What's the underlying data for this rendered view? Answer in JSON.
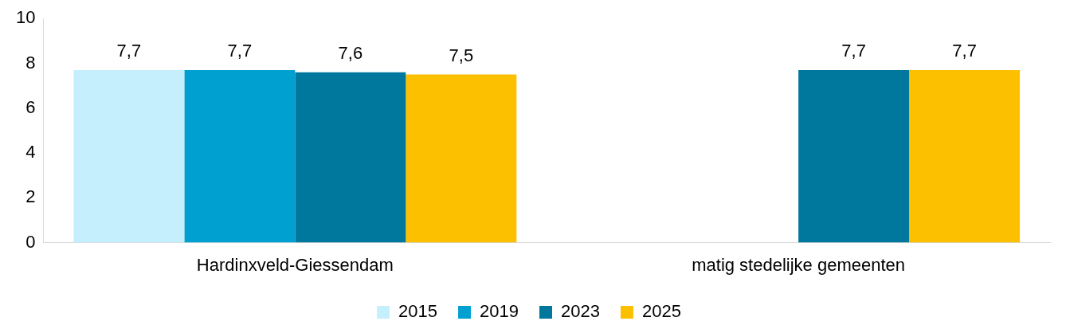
{
  "chart_data": {
    "type": "bar",
    "categories": [
      "Hardinxveld-Giessendam",
      "matig stedelijke gemeenten"
    ],
    "series": [
      {
        "name": "2015",
        "color": "#c5effc",
        "values": [
          7.7,
          null
        ],
        "value_labels": [
          "7,7",
          null
        ]
      },
      {
        "name": "2019",
        "color": "#00a0d1",
        "values": [
          7.7,
          null
        ],
        "value_labels": [
          "7,7",
          null
        ]
      },
      {
        "name": "2023",
        "color": "#00789e",
        "values": [
          7.6,
          7.7
        ],
        "value_labels": [
          "7,6",
          "7,7"
        ]
      },
      {
        "name": "2025",
        "color": "#fdc000",
        "values": [
          7.5,
          7.7
        ],
        "value_labels": [
          "7,5",
          "7,7"
        ]
      }
    ],
    "ylim": [
      0,
      10
    ],
    "yticks": [
      0,
      2,
      4,
      6,
      8,
      10
    ],
    "grid": false,
    "legend": "bottom"
  }
}
